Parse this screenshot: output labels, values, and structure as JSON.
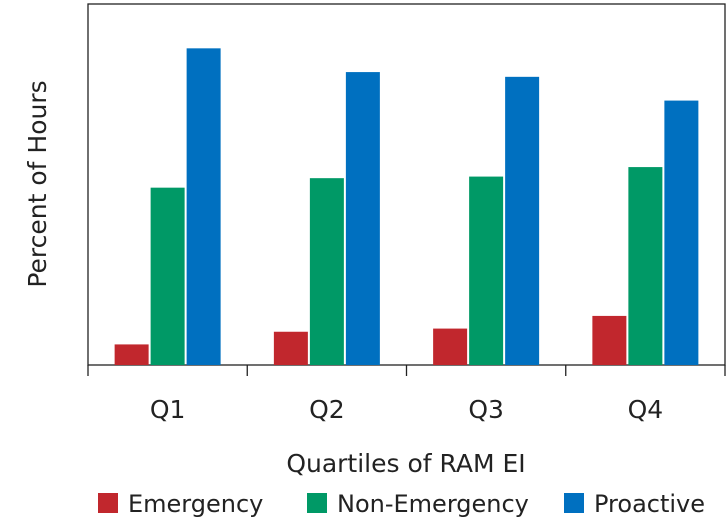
{
  "chart_data": {
    "type": "bar",
    "title": "",
    "xlabel": "Quartiles of RAM EI",
    "ylabel": "Percent of Hours",
    "categories": [
      "Q1",
      "Q2",
      "Q3",
      "Q4"
    ],
    "series": [
      {
        "name": "Emergency",
        "color": "#c1272d",
        "values": [
          6.5,
          10.5,
          11.5,
          15.5
        ]
      },
      {
        "name": "Non-Emergency",
        "color": "#009966",
        "values": [
          56,
          59,
          59.5,
          62.5
        ]
      },
      {
        "name": "Proactive",
        "color": "#0070c0",
        "values": [
          100,
          92.5,
          91,
          83.5
        ]
      }
    ],
    "ylim": [
      0,
      114
    ],
    "y_ticks_shown": false,
    "grid": false,
    "legend_position": "bottom"
  }
}
